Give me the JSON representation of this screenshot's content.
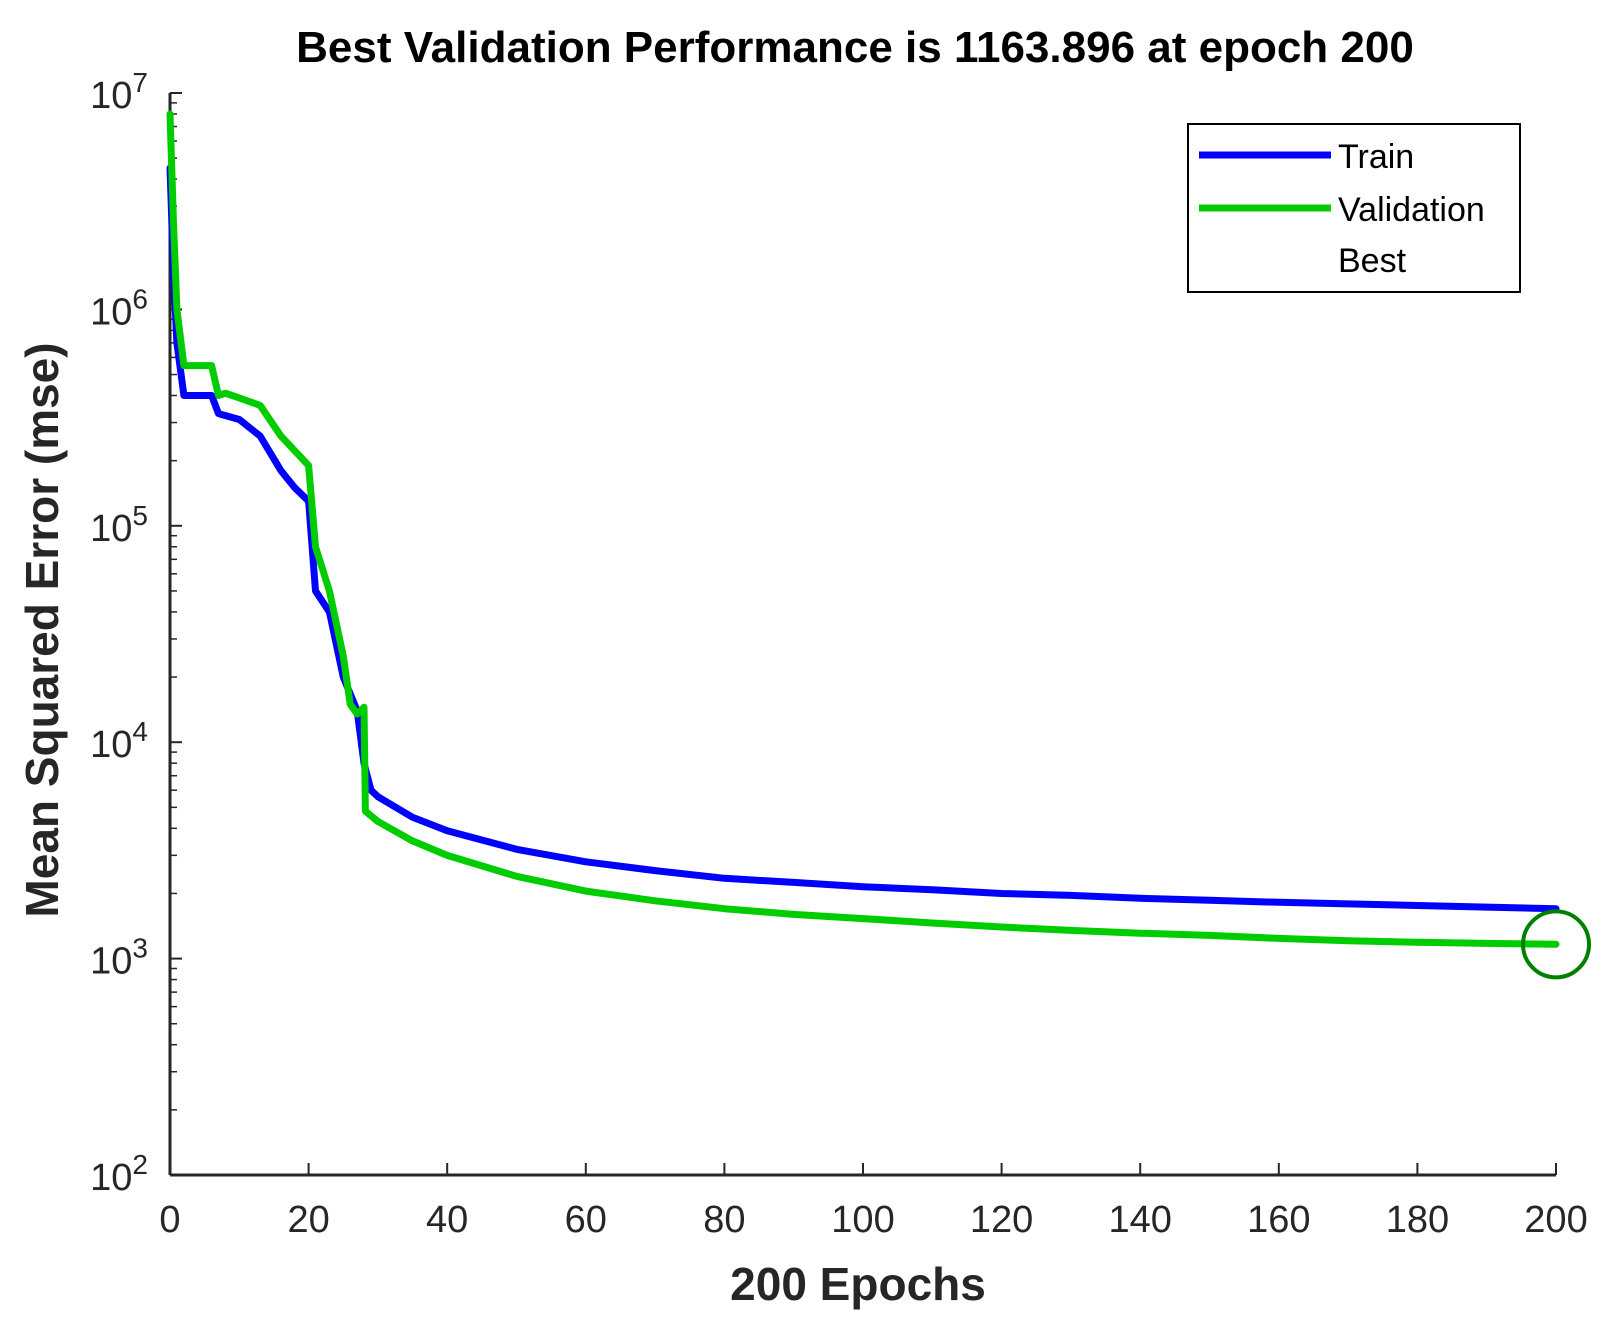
{
  "chart_data": {
    "type": "line",
    "title": "Best Validation Performance is 1163.896 at epoch 200",
    "xlabel": "200 Epochs",
    "ylabel": "Mean Squared Error  (mse)",
    "yscale": "log",
    "xlim": [
      0,
      200
    ],
    "ylim": [
      100,
      10000000
    ],
    "x_ticks": [
      0,
      20,
      40,
      60,
      80,
      100,
      120,
      140,
      160,
      180,
      200
    ],
    "x_tick_labels": [
      "0",
      "20",
      "40",
      "60",
      "80",
      "100",
      "120",
      "140",
      "160",
      "180",
      "200"
    ],
    "y_ticks": [
      {
        "value": 100,
        "base": "10",
        "exp": "2"
      },
      {
        "value": 1000,
        "base": "10",
        "exp": "3"
      },
      {
        "value": 10000,
        "base": "10",
        "exp": "4"
      },
      {
        "value": 100000,
        "base": "10",
        "exp": "5"
      },
      {
        "value": 1000000,
        "base": "10",
        "exp": "6"
      },
      {
        "value": 10000000,
        "base": "10",
        "exp": "7"
      }
    ],
    "legend_position": "top-right",
    "series": [
      {
        "name": "Train",
        "color": "#0000ff",
        "points": [
          [
            0,
            4500000
          ],
          [
            0.5,
            1500000
          ],
          [
            1,
            700000
          ],
          [
            2,
            400000
          ],
          [
            6,
            400000
          ],
          [
            7,
            330000
          ],
          [
            10,
            310000
          ],
          [
            13,
            260000
          ],
          [
            16,
            180000
          ],
          [
            18,
            150000
          ],
          [
            20,
            130000
          ],
          [
            21,
            50000
          ],
          [
            23,
            40000
          ],
          [
            25,
            20000
          ],
          [
            27,
            14000
          ],
          [
            28,
            8000
          ],
          [
            29,
            6000
          ],
          [
            30,
            5600
          ],
          [
            35,
            4500
          ],
          [
            40,
            3900
          ],
          [
            50,
            3200
          ],
          [
            60,
            2800
          ],
          [
            70,
            2550
          ],
          [
            80,
            2350
          ],
          [
            90,
            2250
          ],
          [
            100,
            2150
          ],
          [
            110,
            2080
          ],
          [
            120,
            2000
          ],
          [
            130,
            1960
          ],
          [
            140,
            1900
          ],
          [
            150,
            1860
          ],
          [
            160,
            1820
          ],
          [
            170,
            1790
          ],
          [
            180,
            1760
          ],
          [
            190,
            1730
          ],
          [
            200,
            1700
          ]
        ]
      },
      {
        "name": "Validation",
        "color": "#00cc00",
        "points": [
          [
            0,
            8000000
          ],
          [
            0.5,
            2500000
          ],
          [
            1,
            1000000
          ],
          [
            2,
            550000
          ],
          [
            6,
            550000
          ],
          [
            7,
            400000
          ],
          [
            8,
            410000
          ],
          [
            10,
            390000
          ],
          [
            13,
            360000
          ],
          [
            16,
            260000
          ],
          [
            20,
            190000
          ],
          [
            21,
            80000
          ],
          [
            23,
            50000
          ],
          [
            25,
            25000
          ],
          [
            26,
            15000
          ],
          [
            27,
            13500
          ],
          [
            28,
            14500
          ],
          [
            28.2,
            4800
          ],
          [
            30,
            4300
          ],
          [
            35,
            3500
          ],
          [
            40,
            3000
          ],
          [
            50,
            2400
          ],
          [
            60,
            2050
          ],
          [
            70,
            1850
          ],
          [
            80,
            1700
          ],
          [
            90,
            1600
          ],
          [
            100,
            1530
          ],
          [
            110,
            1460
          ],
          [
            120,
            1400
          ],
          [
            130,
            1350
          ],
          [
            140,
            1310
          ],
          [
            150,
            1280
          ],
          [
            160,
            1240
          ],
          [
            170,
            1210
          ],
          [
            180,
            1190
          ],
          [
            190,
            1175
          ],
          [
            200,
            1163.896
          ]
        ]
      }
    ],
    "best": {
      "name": "Best",
      "x": 200,
      "y": 1163.896,
      "color": "#008000"
    }
  }
}
